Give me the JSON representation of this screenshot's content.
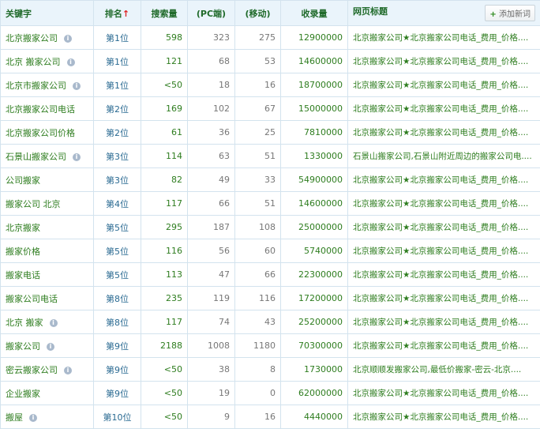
{
  "headers": {
    "keyword": "关键字",
    "rank": "排名",
    "rank_sort_arrow": "↑",
    "search_volume": "搜索量",
    "pc": "(PC端)",
    "mobile": "(移动)",
    "indexed": "收录量",
    "page_title": "网页标题",
    "add_button": "添加新词"
  },
  "rows": [
    {
      "keyword": "北京搬家公司",
      "info": true,
      "rank": "第1位",
      "search": "598",
      "pc": "323",
      "mobile": "275",
      "indexed": "12900000",
      "title": "北京搬家公司★北京搬家公司电话_费用_价格...."
    },
    {
      "keyword": "北京 搬家公司",
      "info": true,
      "rank": "第1位",
      "search": "121",
      "pc": "68",
      "mobile": "53",
      "indexed": "14600000",
      "title": "北京搬家公司★北京搬家公司电话_费用_价格...."
    },
    {
      "keyword": "北京市搬家公司",
      "info": true,
      "rank": "第1位",
      "search": "<50",
      "pc": "18",
      "mobile": "16",
      "indexed": "18700000",
      "title": "北京搬家公司★北京搬家公司电话_费用_价格...."
    },
    {
      "keyword": "北京搬家公司电话",
      "info": false,
      "rank": "第2位",
      "search": "169",
      "pc": "102",
      "mobile": "67",
      "indexed": "15000000",
      "title": "北京搬家公司★北京搬家公司电话_费用_价格...."
    },
    {
      "keyword": "北京搬家公司价格",
      "info": false,
      "rank": "第2位",
      "search": "61",
      "pc": "36",
      "mobile": "25",
      "indexed": "7810000",
      "title": "北京搬家公司★北京搬家公司电话_费用_价格...."
    },
    {
      "keyword": "石景山搬家公司",
      "info": true,
      "rank": "第3位",
      "search": "114",
      "pc": "63",
      "mobile": "51",
      "indexed": "1330000",
      "title": "石景山搬家公司,石景山附近周边的搬家公司电...."
    },
    {
      "keyword": "公司搬家",
      "info": false,
      "rank": "第3位",
      "search": "82",
      "pc": "49",
      "mobile": "33",
      "indexed": "54900000",
      "title": "北京搬家公司★北京搬家公司电话_费用_价格...."
    },
    {
      "keyword": "搬家公司 北京",
      "info": false,
      "rank": "第4位",
      "search": "117",
      "pc": "66",
      "mobile": "51",
      "indexed": "14600000",
      "title": "北京搬家公司★北京搬家公司电话_费用_价格...."
    },
    {
      "keyword": "北京搬家",
      "info": false,
      "rank": "第5位",
      "search": "295",
      "pc": "187",
      "mobile": "108",
      "indexed": "25000000",
      "title": "北京搬家公司★北京搬家公司电话_费用_价格...."
    },
    {
      "keyword": "搬家价格",
      "info": false,
      "rank": "第5位",
      "search": "116",
      "pc": "56",
      "mobile": "60",
      "indexed": "5740000",
      "title": "北京搬家公司★北京搬家公司电话_费用_价格...."
    },
    {
      "keyword": "搬家电话",
      "info": false,
      "rank": "第5位",
      "search": "113",
      "pc": "47",
      "mobile": "66",
      "indexed": "22300000",
      "title": "北京搬家公司★北京搬家公司电话_费用_价格...."
    },
    {
      "keyword": "搬家公司电话",
      "info": false,
      "rank": "第8位",
      "search": "235",
      "pc": "119",
      "mobile": "116",
      "indexed": "17200000",
      "title": "北京搬家公司★北京搬家公司电话_费用_价格...."
    },
    {
      "keyword": "北京 搬家",
      "info": true,
      "rank": "第8位",
      "search": "117",
      "pc": "74",
      "mobile": "43",
      "indexed": "25200000",
      "title": "北京搬家公司★北京搬家公司电话_费用_价格...."
    },
    {
      "keyword": "搬家公司",
      "info": true,
      "rank": "第9位",
      "search": "2188",
      "pc": "1008",
      "mobile": "1180",
      "indexed": "70300000",
      "title": "北京搬家公司★北京搬家公司电话_费用_价格...."
    },
    {
      "keyword": "密云搬家公司",
      "info": true,
      "rank": "第9位",
      "search": "<50",
      "pc": "38",
      "mobile": "8",
      "indexed": "1730000",
      "title": "北京顺顺发搬家公司,最低价搬家-密云-北京...."
    },
    {
      "keyword": "企业搬家",
      "info": false,
      "rank": "第9位",
      "search": "<50",
      "pc": "19",
      "mobile": "0",
      "indexed": "62000000",
      "title": "北京搬家公司★北京搬家公司电话_费用_价格...."
    },
    {
      "keyword": "搬屋",
      "info": true,
      "rank": "第10位",
      "search": "<50",
      "pc": "9",
      "mobile": "16",
      "indexed": "4440000",
      "title": "北京搬家公司★北京搬家公司电话_费用_价格...."
    }
  ]
}
